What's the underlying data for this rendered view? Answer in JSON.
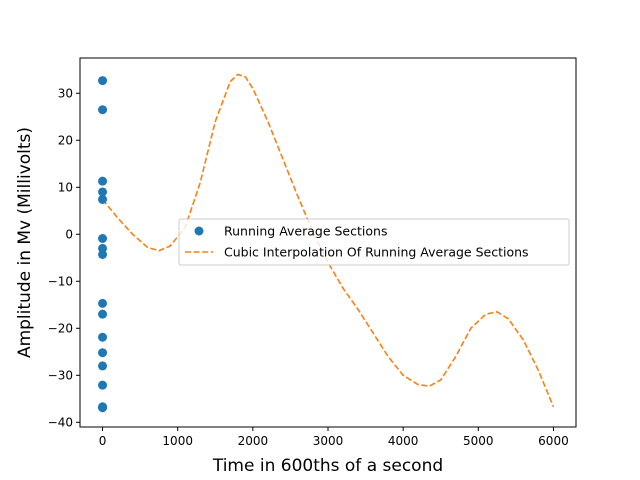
{
  "chart_data": {
    "type": "scatter",
    "xlabel": "Time in 600ths of a second",
    "ylabel": "Amplitude in Mv (Millivolts)",
    "xlim": [
      -300,
      6300
    ],
    "ylim": [
      -41,
      37.5
    ],
    "x_ticks": [
      0,
      1000,
      2000,
      3000,
      4000,
      5000,
      6000
    ],
    "x_tick_labels": [
      "0",
      "1000",
      "2000",
      "3000",
      "4000",
      "5000",
      "6000"
    ],
    "y_ticks": [
      -40,
      -30,
      -20,
      -10,
      0,
      10,
      20,
      30
    ],
    "y_tick_labels": [
      "−40",
      "−30",
      "−20",
      "−10",
      "0",
      "10",
      "20",
      "30"
    ],
    "grid": false,
    "legend_position": "center-right",
    "series": [
      {
        "name": "Running Average Sections",
        "kind": "scatter",
        "color": "#1f77b4",
        "x": [
          0,
          0,
          0,
          0,
          0,
          0,
          0,
          0,
          0,
          0,
          0,
          0,
          0,
          0,
          0,
          0,
          0
        ],
        "y": [
          32.7,
          26.5,
          11.3,
          9.0,
          7.4,
          -0.9,
          -3.0,
          -4.3,
          -14.7,
          -17.0,
          -21.9,
          -25.2,
          -28.0,
          -32.1,
          -36.8,
          -36.7,
          -36.9
        ]
      },
      {
        "name": "Cubic Interpolation Of Running Average Sections",
        "kind": "line",
        "style": "dashed",
        "color": "#ff7f0e",
        "x": [
          0,
          200,
          400,
          600,
          750,
          900,
          1100,
          1300,
          1500,
          1700,
          1800,
          1900,
          2000,
          2200,
          2400,
          2600,
          2800,
          3000,
          3200,
          3400,
          3600,
          3800,
          4000,
          4200,
          4350,
          4500,
          4700,
          4900,
          5100,
          5250,
          5400,
          5600,
          5800,
          6000
        ],
        "y": [
          7.4,
          3.5,
          0.0,
          -2.8,
          -3.5,
          -2.5,
          1.5,
          11.0,
          24.0,
          32.5,
          34.0,
          33.5,
          31.0,
          24.0,
          16.0,
          8.0,
          0.5,
          -6.0,
          -11.5,
          -16.0,
          -21.0,
          -26.0,
          -30.0,
          -32.0,
          -32.3,
          -31.0,
          -26.0,
          -20.0,
          -17.0,
          -16.5,
          -18.0,
          -22.5,
          -29.0,
          -36.7
        ]
      }
    ]
  }
}
